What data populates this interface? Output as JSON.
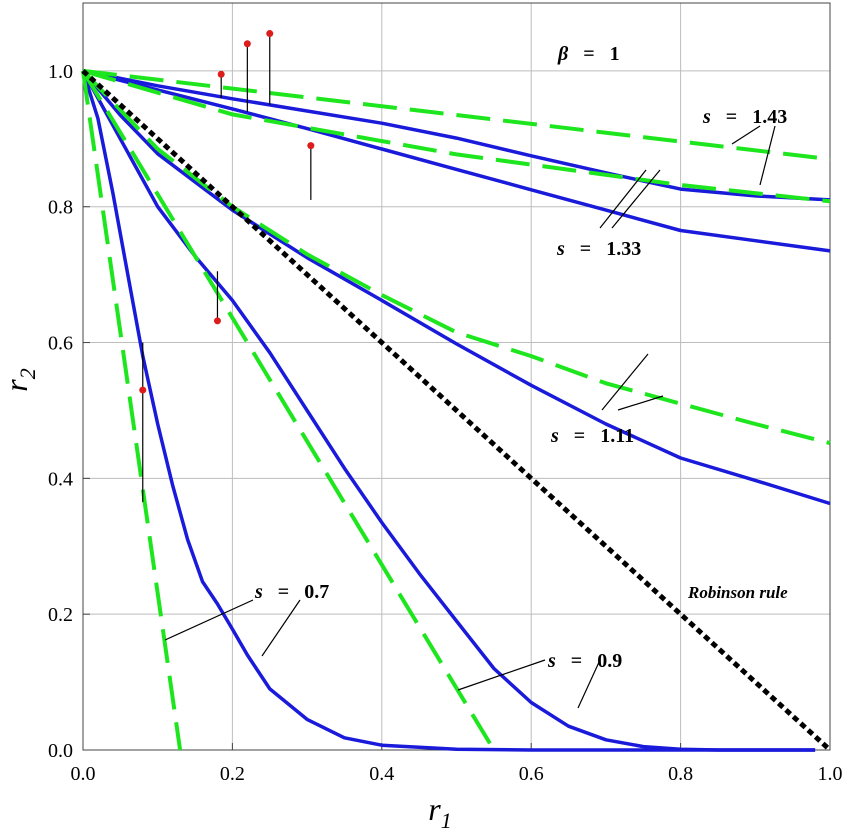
{
  "chart_data": {
    "type": "line",
    "xlabel_main": "r",
    "xlabel_sub": "1",
    "ylabel_main": "r",
    "ylabel_sub": "2",
    "xlim": [
      0,
      1
    ],
    "ylim": [
      0,
      1.1
    ],
    "x_ticks": [
      "0.0",
      "0.2",
      "0.4",
      "0.6",
      "0.8",
      "1.0"
    ],
    "y_ticks": [
      "0.0",
      "0.2",
      "0.4",
      "0.6",
      "0.8",
      "1.0"
    ],
    "grid": true,
    "colors": {
      "solid": "#1a1adb",
      "dashed": "#1ee61e",
      "robinson": "#000000",
      "marker": "#dd1c1c"
    },
    "annotations": {
      "beta": {
        "sym": "β",
        "eq": "=",
        "val": "1"
      },
      "s143": {
        "sym": "s",
        "eq": "=",
        "val": "1.43"
      },
      "s133": {
        "sym": "s",
        "eq": "=",
        "val": "1.33"
      },
      "s111": {
        "sym": "s",
        "eq": "=",
        "val": "1.11"
      },
      "s07": {
        "sym": "s",
        "eq": "=",
        "val": "0.7"
      },
      "s09": {
        "sym": "s",
        "eq": "=",
        "val": "0.9"
      },
      "robinson": "Robinson rule"
    },
    "series": [
      {
        "style": "solid",
        "points": [
          [
            0,
            1
          ],
          [
            0.1,
            0.978
          ],
          [
            0.2,
            0.959
          ],
          [
            0.3,
            0.941
          ],
          [
            0.4,
            0.923
          ],
          [
            0.5,
            0.901
          ],
          [
            0.6,
            0.875
          ],
          [
            0.7,
            0.85
          ],
          [
            0.8,
            0.826
          ],
          [
            0.9,
            0.816
          ],
          [
            1.0,
            0.81
          ]
        ]
      },
      {
        "style": "solid",
        "points": [
          [
            0,
            1
          ],
          [
            0.1,
            0.972
          ],
          [
            0.2,
            0.944
          ],
          [
            0.3,
            0.915
          ],
          [
            0.4,
            0.885
          ],
          [
            0.5,
            0.855
          ],
          [
            0.6,
            0.825
          ],
          [
            0.7,
            0.795
          ],
          [
            0.8,
            0.765
          ],
          [
            0.9,
            0.75
          ],
          [
            1.0,
            0.735
          ]
        ]
      },
      {
        "style": "solid",
        "points": [
          [
            0,
            1
          ],
          [
            0.05,
            0.935
          ],
          [
            0.1,
            0.878
          ],
          [
            0.2,
            0.795
          ],
          [
            0.3,
            0.725
          ],
          [
            0.4,
            0.662
          ],
          [
            0.5,
            0.598
          ],
          [
            0.6,
            0.537
          ],
          [
            0.7,
            0.48
          ],
          [
            0.8,
            0.43
          ],
          [
            0.9,
            0.397
          ],
          [
            1.0,
            0.363
          ]
        ]
      },
      {
        "style": "solid",
        "points": [
          [
            0,
            1
          ],
          [
            0.05,
            0.9
          ],
          [
            0.1,
            0.8
          ],
          [
            0.15,
            0.727
          ],
          [
            0.2,
            0.662
          ],
          [
            0.25,
            0.585
          ],
          [
            0.3,
            0.5
          ],
          [
            0.35,
            0.415
          ],
          [
            0.4,
            0.335
          ],
          [
            0.45,
            0.26
          ],
          [
            0.5,
            0.19
          ],
          [
            0.55,
            0.12
          ],
          [
            0.6,
            0.07
          ],
          [
            0.65,
            0.035
          ],
          [
            0.7,
            0.015
          ],
          [
            0.75,
            0.005
          ],
          [
            0.8,
            0.001
          ],
          [
            0.85,
            0
          ],
          [
            0.98,
            0
          ]
        ]
      },
      {
        "style": "solid",
        "points": [
          [
            0,
            1
          ],
          [
            0.02,
            0.93
          ],
          [
            0.04,
            0.82
          ],
          [
            0.06,
            0.7
          ],
          [
            0.08,
            0.58
          ],
          [
            0.1,
            0.48
          ],
          [
            0.12,
            0.39
          ],
          [
            0.14,
            0.31
          ],
          [
            0.16,
            0.248
          ],
          [
            0.18,
            0.215
          ],
          [
            0.2,
            0.178
          ],
          [
            0.22,
            0.14
          ],
          [
            0.25,
            0.09
          ],
          [
            0.3,
            0.045
          ],
          [
            0.35,
            0.018
          ],
          [
            0.4,
            0.007
          ],
          [
            0.5,
            0.001
          ],
          [
            0.6,
            0
          ],
          [
            0.98,
            0
          ]
        ]
      },
      {
        "style": "dashed",
        "points": [
          [
            0,
            1
          ],
          [
            1.0,
            0.87
          ]
        ]
      },
      {
        "style": "dashed",
        "points": [
          [
            0,
            1
          ],
          [
            0.2,
            0.936
          ],
          [
            0.5,
            0.877
          ],
          [
            0.8,
            0.832
          ],
          [
            1.0,
            0.808
          ]
        ]
      },
      {
        "style": "dashed",
        "points": [
          [
            0,
            1
          ],
          [
            0.1,
            0.885
          ],
          [
            0.2,
            0.8
          ],
          [
            0.3,
            0.73
          ],
          [
            0.4,
            0.67
          ],
          [
            0.5,
            0.615
          ],
          [
            0.6,
            0.58
          ],
          [
            0.7,
            0.54
          ],
          [
            0.8,
            0.51
          ],
          [
            0.9,
            0.48
          ],
          [
            1.0,
            0.452
          ]
        ]
      },
      {
        "style": "dashed",
        "points": [
          [
            0,
            1
          ],
          [
            0.55,
            0
          ]
        ]
      },
      {
        "style": "dashed",
        "points": [
          [
            0,
            1
          ],
          [
            0.13,
            0
          ]
        ]
      },
      {
        "style": "dotted",
        "points": [
          [
            0,
            1
          ],
          [
            1,
            0
          ]
        ]
      }
    ],
    "markers": [
      {
        "x": 0.185,
        "y": 0.995,
        "y2": 0.96
      },
      {
        "x": 0.22,
        "y": 1.04,
        "y2": 0.94
      },
      {
        "x": 0.25,
        "y": 1.055,
        "y2": 0.95
      },
      {
        "x": 0.305,
        "y": 0.89,
        "y2": 0.81
      },
      {
        "x": 0.18,
        "y": 0.632,
        "y2": 0.705
      },
      {
        "x": 0.08,
        "y": 0.53,
        "y2": 0.6,
        "y0": 0.365
      }
    ]
  }
}
